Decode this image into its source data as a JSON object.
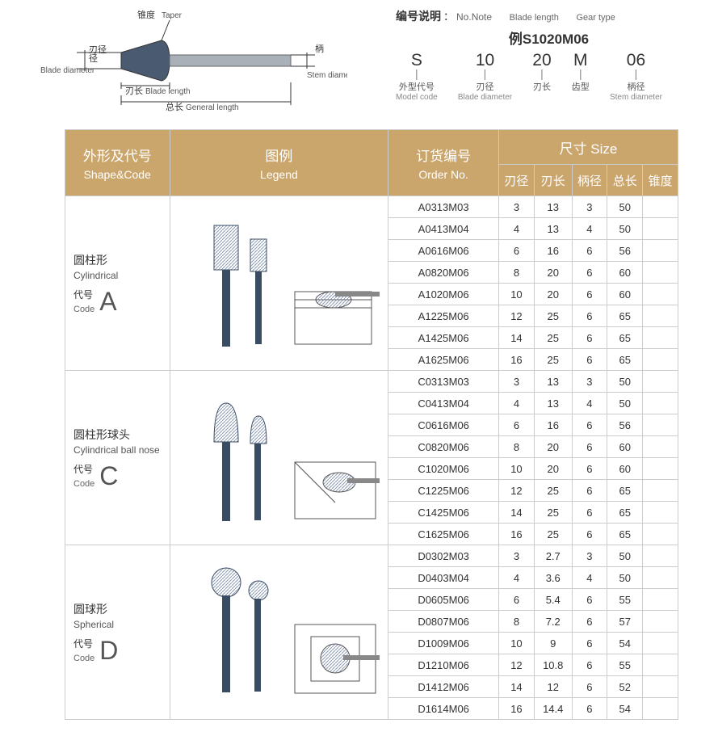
{
  "diagram": {
    "taper_cn": "锥度",
    "taper_en": "Taper",
    "blade_dia_cn": "刃径",
    "blade_dia_en": "Blade diameter",
    "blade_len_cn": "刃长",
    "blade_len_en": "Blade length",
    "general_len_cn": "总长",
    "general_len_en": "General length",
    "stem_cn": "柄",
    "stem_en": "Stem diameter"
  },
  "numex": {
    "title_cn": "编号说明",
    "colon": "：",
    "no_note": "No.Note",
    "bl": "Blade length",
    "gt": "Gear type",
    "example_prefix": "例",
    "example_code": "S1020M06",
    "parts": [
      {
        "big": "S",
        "cn": "外型代号",
        "en": "Model code"
      },
      {
        "big": "10",
        "cn": "刃径",
        "en": "Blade diameter"
      },
      {
        "big": "20",
        "cn": "刃长",
        "en": ""
      },
      {
        "big": "M",
        "cn": "齿型",
        "en": ""
      },
      {
        "big": "06",
        "cn": "柄径",
        "en": "Stem diameter"
      }
    ]
  },
  "headers": {
    "shape_cn": "外形及代号",
    "shape_en": "Shape&Code",
    "legend_cn": "图例",
    "legend_en": "Legend",
    "order_cn": "订货编号",
    "order_en": "Order No.",
    "size_cn": "尺寸",
    "size_en": "Size",
    "dims": [
      "刃径",
      "刃长",
      "柄径",
      "总长",
      "锥度"
    ]
  },
  "groups": [
    {
      "shape_cn": "圆柱形",
      "shape_en": "Cylindrical",
      "code_cn": "代号",
      "code_en": "Code",
      "letter": "A",
      "rows": [
        {
          "no": "A0313M03",
          "d": [
            3,
            13,
            3,
            50,
            ""
          ]
        },
        {
          "no": "A0413M04",
          "d": [
            4,
            13,
            4,
            50,
            ""
          ]
        },
        {
          "no": "A0616M06",
          "d": [
            6,
            16,
            6,
            56,
            ""
          ]
        },
        {
          "no": "A0820M06",
          "d": [
            8,
            20,
            6,
            60,
            ""
          ]
        },
        {
          "no": "A1020M06",
          "d": [
            10,
            20,
            6,
            60,
            ""
          ]
        },
        {
          "no": "A1225M06",
          "d": [
            12,
            25,
            6,
            65,
            ""
          ]
        },
        {
          "no": "A1425M06",
          "d": [
            14,
            25,
            6,
            65,
            ""
          ]
        },
        {
          "no": "A1625M06",
          "d": [
            16,
            25,
            6,
            65,
            ""
          ]
        }
      ]
    },
    {
      "shape_cn": "圆柱形球头",
      "shape_en": "Cylindrical ball nose",
      "code_cn": "代号",
      "code_en": "Code",
      "letter": "C",
      "rows": [
        {
          "no": "C0313M03",
          "d": [
            3,
            13,
            3,
            50,
            ""
          ]
        },
        {
          "no": "C0413M04",
          "d": [
            4,
            13,
            4,
            50,
            ""
          ]
        },
        {
          "no": "C0616M06",
          "d": [
            6,
            16,
            6,
            56,
            ""
          ]
        },
        {
          "no": "C0820M06",
          "d": [
            8,
            20,
            6,
            60,
            ""
          ]
        },
        {
          "no": "C1020M06",
          "d": [
            10,
            20,
            6,
            60,
            ""
          ]
        },
        {
          "no": "C1225M06",
          "d": [
            12,
            25,
            6,
            65,
            ""
          ]
        },
        {
          "no": "C1425M06",
          "d": [
            14,
            25,
            6,
            65,
            ""
          ]
        },
        {
          "no": "C1625M06",
          "d": [
            16,
            25,
            6,
            65,
            ""
          ]
        }
      ]
    },
    {
      "shape_cn": "圆球形",
      "shape_en": "Spherical",
      "code_cn": "代号",
      "code_en": "Code",
      "letter": "D",
      "rows": [
        {
          "no": "D0302M03",
          "d": [
            3,
            "2.7",
            3,
            50,
            ""
          ]
        },
        {
          "no": "D0403M04",
          "d": [
            4,
            "3.6",
            4,
            50,
            ""
          ]
        },
        {
          "no": "D0605M06",
          "d": [
            6,
            "5.4",
            6,
            55,
            ""
          ]
        },
        {
          "no": "D0807M06",
          "d": [
            8,
            "7.2",
            6,
            57,
            ""
          ]
        },
        {
          "no": "D1009M06",
          "d": [
            10,
            9,
            6,
            54,
            ""
          ]
        },
        {
          "no": "D1210M06",
          "d": [
            12,
            "10.8",
            6,
            55,
            ""
          ]
        },
        {
          "no": "D1412M06",
          "d": [
            14,
            12,
            6,
            52,
            ""
          ]
        },
        {
          "no": "D1614M06",
          "d": [
            16,
            "14.4",
            6,
            54,
            ""
          ]
        }
      ]
    }
  ],
  "colors": {
    "header_bg": "#cba66c",
    "border": "#cccccc",
    "tool": "#3a4c64",
    "hatch": "#8a9ab0"
  }
}
